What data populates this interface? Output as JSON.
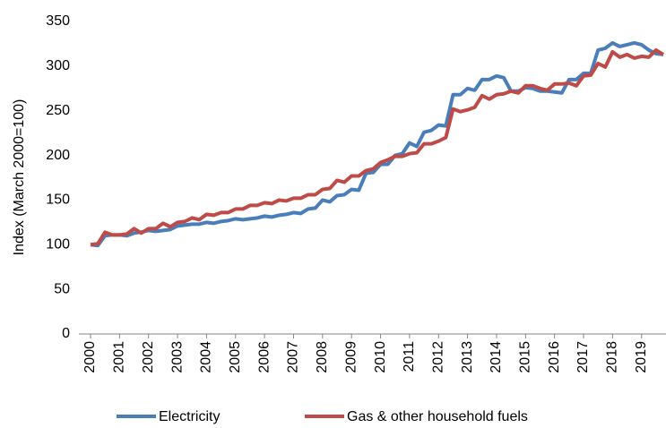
{
  "chart_data": {
    "type": "line",
    "ylabel": "Index (March 2000=100)",
    "x": [
      2000,
      2000.25,
      2000.5,
      2000.75,
      2001,
      2001.25,
      2001.5,
      2001.75,
      2002,
      2002.25,
      2002.5,
      2002.75,
      2003,
      2003.25,
      2003.5,
      2003.75,
      2004,
      2004.25,
      2004.5,
      2004.75,
      2005,
      2005.25,
      2005.5,
      2005.75,
      2006,
      2006.25,
      2006.5,
      2006.75,
      2007,
      2007.25,
      2007.5,
      2007.75,
      2008,
      2008.25,
      2008.5,
      2008.75,
      2009,
      2009.25,
      2009.5,
      2009.75,
      2010,
      2010.25,
      2010.5,
      2010.75,
      2011,
      2011.25,
      2011.5,
      2011.75,
      2012,
      2012.25,
      2012.5,
      2012.75,
      2013,
      2013.25,
      2013.5,
      2013.75,
      2014,
      2014.25,
      2014.5,
      2014.75,
      2015,
      2015.25,
      2015.5,
      2015.75,
      2016,
      2016.25,
      2016.5,
      2016.75,
      2017,
      2017.25,
      2017.5,
      2017.75,
      2018,
      2018.25,
      2018.5,
      2018.75,
      2019,
      2019.25,
      2019.5,
      2019.75
    ],
    "series": [
      {
        "name": "Electricity",
        "color": "#4a7ebb",
        "values": [
          100,
          99,
          110,
          111,
          111,
          110,
          113,
          114,
          116,
          115,
          116,
          117,
          121,
          122,
          123,
          123,
          125,
          124,
          126,
          127,
          129,
          128,
          129,
          130,
          132,
          131,
          133,
          134,
          136,
          135,
          140,
          141,
          150,
          148,
          155,
          156,
          162,
          161,
          180,
          181,
          190,
          190,
          200,
          202,
          214,
          210,
          226,
          228,
          234,
          233,
          268,
          268,
          275,
          273,
          285,
          285,
          289,
          287,
          272,
          272,
          276,
          275,
          272,
          272,
          271,
          270,
          285,
          285,
          292,
          292,
          318,
          320,
          326,
          322,
          324,
          326,
          324,
          318,
          314,
          313
        ]
      },
      {
        "name": "Gas & other household fuels",
        "color": "#be4b48",
        "values": [
          100,
          101,
          114,
          111,
          111,
          112,
          118,
          113,
          118,
          118,
          124,
          120,
          125,
          126,
          130,
          128,
          134,
          133,
          136,
          136,
          140,
          140,
          144,
          144,
          147,
          146,
          150,
          149,
          152,
          152,
          156,
          156,
          162,
          163,
          172,
          170,
          177,
          177,
          183,
          185,
          192,
          195,
          199,
          199,
          202,
          203,
          213,
          213,
          216,
          220,
          252,
          249,
          251,
          254,
          267,
          263,
          268,
          269,
          272,
          270,
          278,
          278,
          275,
          273,
          280,
          280,
          281,
          278,
          289,
          290,
          303,
          299,
          316,
          310,
          313,
          309,
          311,
          310,
          318,
          313
        ]
      }
    ],
    "xlim": [
      2000,
      2019.75
    ],
    "xticks": [
      2000,
      2001,
      2002,
      2003,
      2004,
      2005,
      2006,
      2007,
      2008,
      2009,
      2010,
      2011,
      2012,
      2013,
      2014,
      2015,
      2016,
      2017,
      2018,
      2019
    ],
    "ylim": [
      0,
      350
    ],
    "yticks": [
      0,
      50,
      100,
      150,
      200,
      250,
      300,
      350
    ],
    "grid": false,
    "legend": "bottom"
  }
}
